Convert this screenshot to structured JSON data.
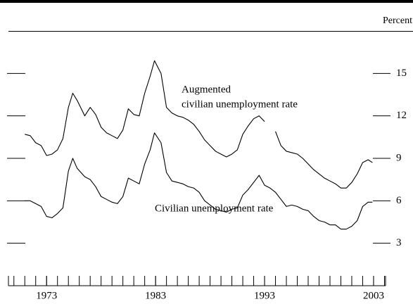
{
  "chart_data": {
    "type": "line",
    "y_label": "Percent",
    "annotations": [
      "Augmented",
      "civilian unemployment rate",
      "Civilian unemployment rate"
    ],
    "x": [
      1971.0,
      1971.5,
      1972.0,
      1972.5,
      1973.0,
      1973.5,
      1974.0,
      1974.5,
      1975.0,
      1975.4,
      1975.8,
      1976.5,
      1977.0,
      1977.5,
      1978.0,
      1978.5,
      1979.0,
      1979.5,
      1980.0,
      1980.5,
      1981.0,
      1981.5,
      1982.0,
      1982.5,
      1982.9,
      1983.5,
      1984.0,
      1984.5,
      1985.0,
      1985.5,
      1986.0,
      1986.5,
      1987.0,
      1987.5,
      1988.0,
      1988.5,
      1989.0,
      1989.5,
      1990.0,
      1990.5,
      1991.0,
      1991.5,
      1992.0,
      1992.5,
      1993.0,
      1993.5,
      1994.0,
      1994.5,
      1995.0,
      1995.5,
      1996.0,
      1996.5,
      1997.0,
      1997.5,
      1998.0,
      1998.5,
      1999.0,
      1999.5,
      2000.0,
      2000.5,
      2001.0,
      2001.5,
      2002.0,
      2002.5,
      2002.9
    ],
    "series": [
      {
        "color": "#000000",
        "values": [
          10.7,
          10.6,
          10.1,
          9.9,
          9.2,
          9.3,
          9.6,
          10.4,
          12.6,
          13.6,
          13.1,
          12.0,
          12.6,
          12.1,
          11.2,
          10.8,
          10.6,
          10.4,
          11.0,
          12.5,
          12.1,
          12.0,
          13.6,
          14.8,
          15.9,
          15.0,
          12.6,
          12.2,
          12.0,
          11.9,
          11.7,
          11.4,
          10.9,
          10.3,
          9.9,
          9.5,
          9.3,
          9.1,
          9.3,
          9.6,
          10.7,
          11.3,
          11.8,
          12.0,
          11.6,
          null,
          10.9,
          9.9,
          9.5,
          9.4,
          9.3,
          9.0,
          8.6,
          8.2,
          7.9,
          7.6,
          7.4,
          7.2,
          6.9,
          6.9,
          7.3,
          7.9,
          8.7,
          8.9,
          8.7
        ]
      },
      {
        "color": "#000000",
        "values": [
          6.0,
          6.0,
          5.8,
          5.6,
          4.9,
          4.8,
          5.1,
          5.5,
          8.1,
          9.0,
          8.3,
          7.7,
          7.5,
          7.0,
          6.3,
          6.1,
          5.9,
          5.8,
          6.3,
          7.6,
          7.4,
          7.2,
          8.6,
          9.6,
          10.8,
          10.1,
          8.0,
          7.4,
          7.3,
          7.2,
          7.0,
          6.9,
          6.6,
          6.0,
          5.7,
          5.4,
          5.3,
          5.2,
          5.4,
          5.5,
          6.4,
          6.8,
          7.3,
          7.8,
          7.1,
          6.9,
          6.6,
          6.1,
          5.6,
          5.7,
          5.6,
          5.4,
          5.3,
          4.9,
          4.6,
          4.5,
          4.3,
          4.3,
          4.0,
          4.0,
          4.2,
          4.6,
          5.6,
          5.9,
          5.9
        ]
      }
    ],
    "xlim": [
      1969.5,
      2004.1
    ],
    "xticks": [
      1973,
      1983,
      1993,
      2003
    ],
    "ylim": [
      0,
      18
    ],
    "yticks": [
      3,
      6,
      9,
      12,
      15
    ]
  }
}
